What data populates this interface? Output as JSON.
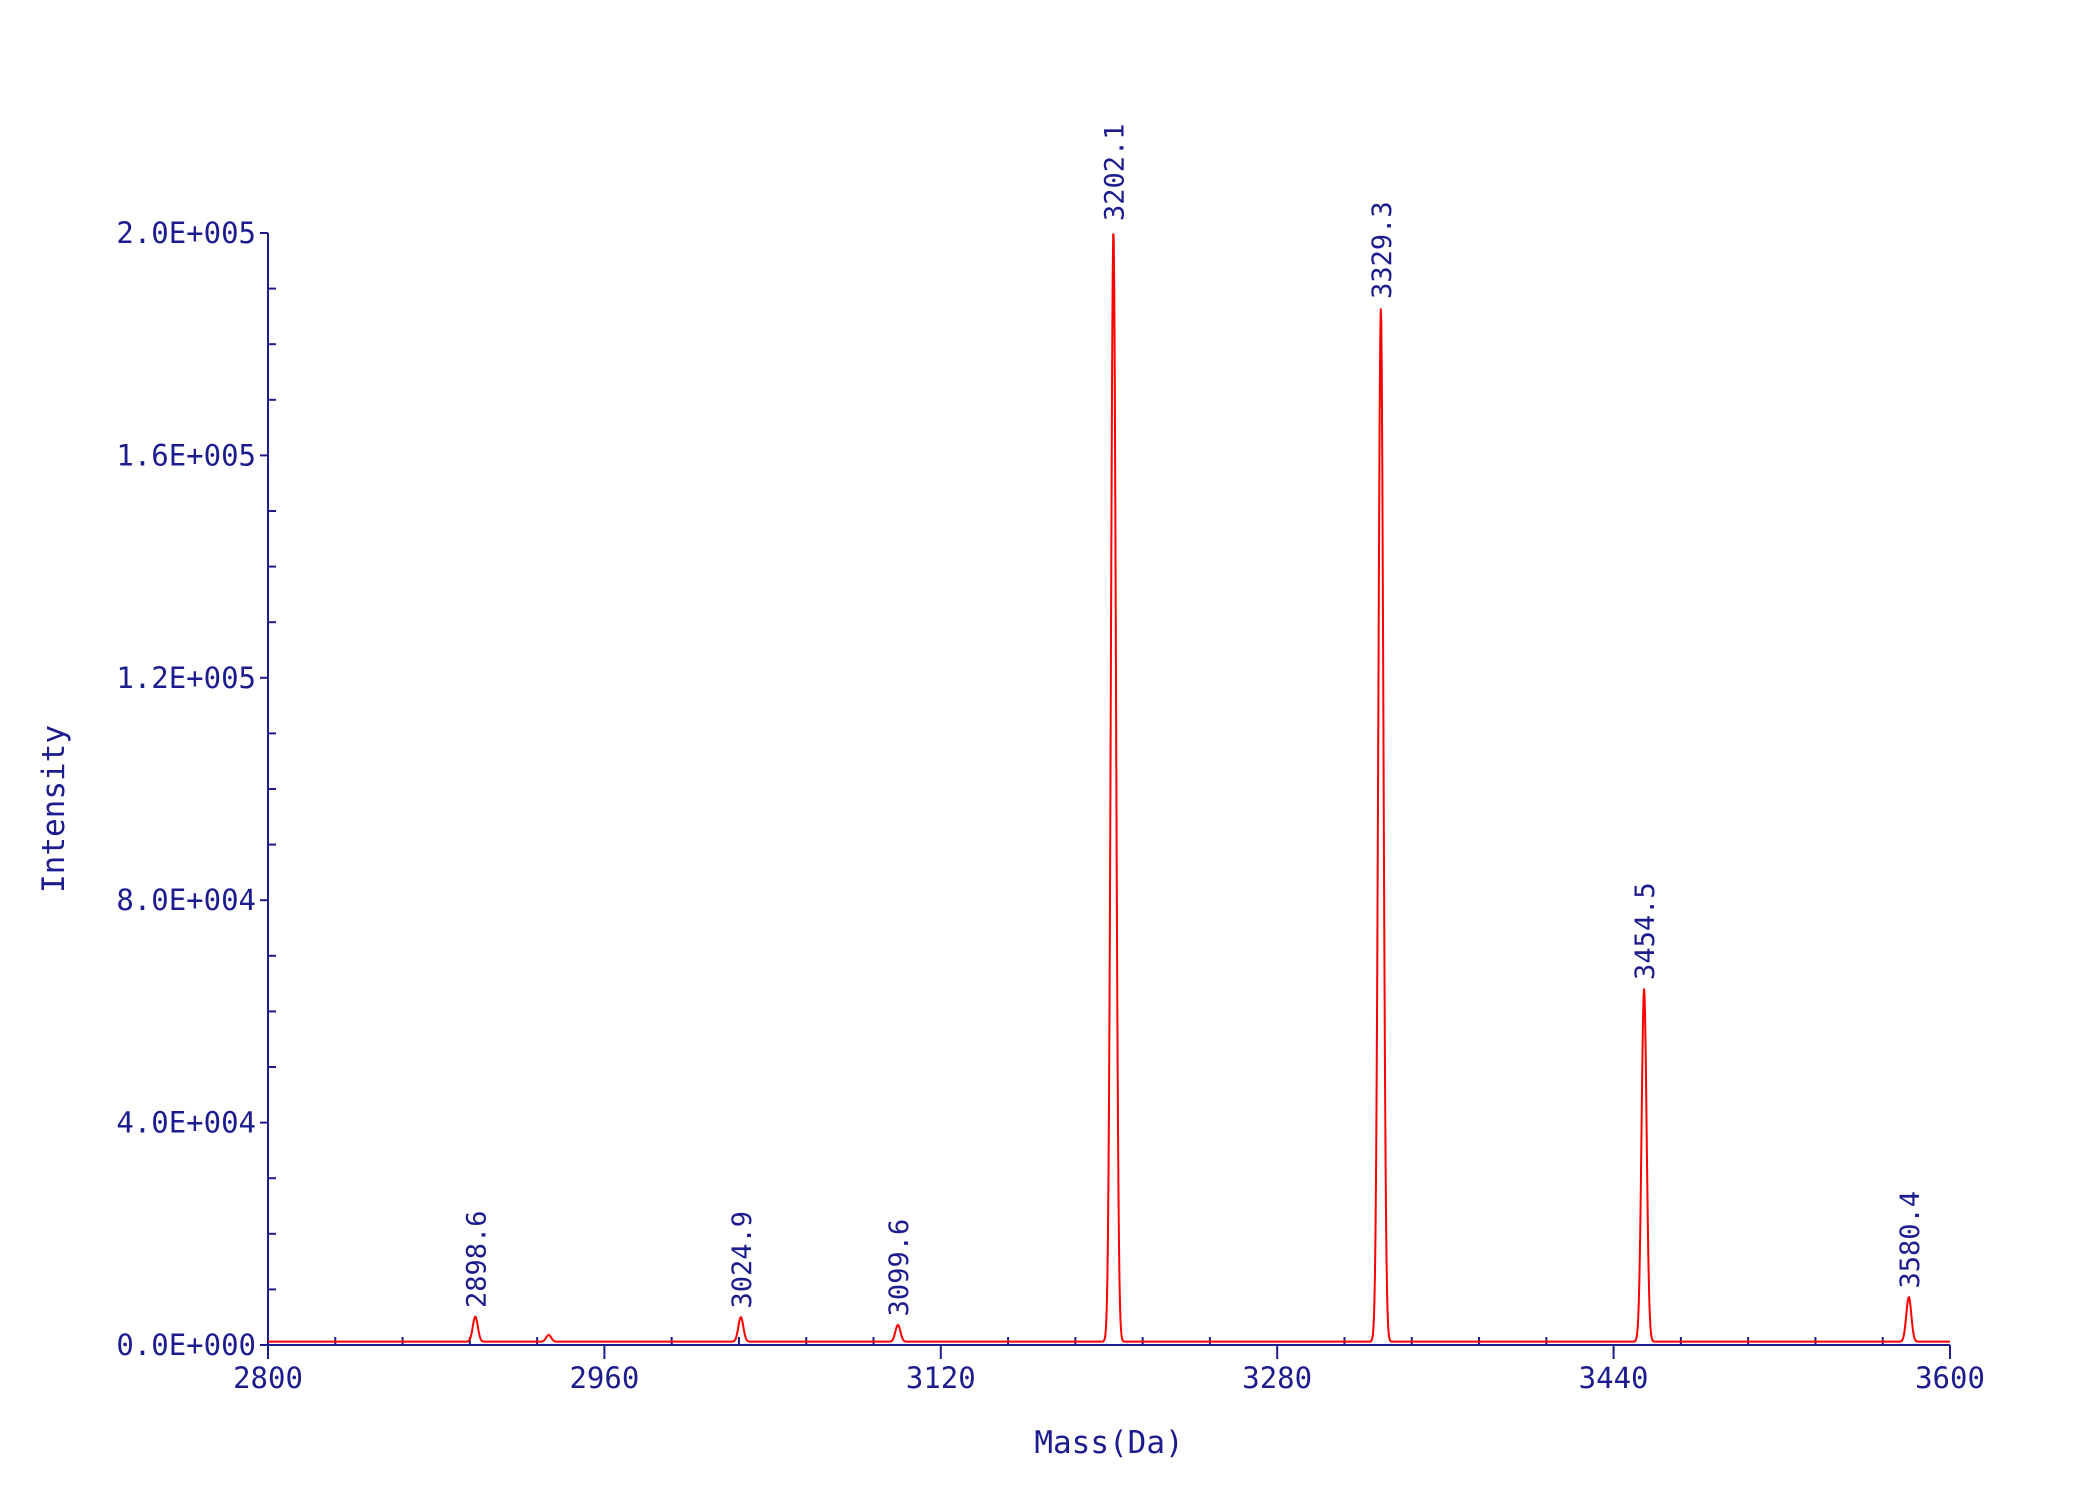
{
  "chart_data": {
    "type": "line",
    "xlabel": "Mass(Da)",
    "ylabel": "Intensity",
    "xlim": [
      2800,
      3600
    ],
    "ylim": [
      0,
      200000
    ],
    "x_ticks": [
      2800,
      2960,
      3120,
      3280,
      3440,
      3600
    ],
    "x_tick_labels": [
      "2800",
      "2960",
      "3120",
      "3280",
      "3440",
      "3600"
    ],
    "y_ticks": [
      0,
      40000,
      80000,
      120000,
      160000,
      200000
    ],
    "y_tick_labels": [
      "0.0E+000",
      "4.0E+004",
      "8.0E+004",
      "1.2E+005",
      "1.6E+005",
      "2.0E+005"
    ],
    "grid": false,
    "colors": {
      "axis": "#1c1c8e",
      "trace": "#ff0000",
      "text": "#1c1c8e"
    },
    "series": [
      {
        "peaks": [
          {
            "x": 2898.6,
            "y": 4500,
            "label": "2898.6"
          },
          {
            "x": 2933.5,
            "y": 1200,
            "label": ""
          },
          {
            "x": 3024.9,
            "y": 4400,
            "label": "3024.9"
          },
          {
            "x": 3099.6,
            "y": 3000,
            "label": "3099.6"
          },
          {
            "x": 3202.1,
            "y": 200000,
            "label": "3202.1"
          },
          {
            "x": 3329.3,
            "y": 186000,
            "label": "3329.3"
          },
          {
            "x": 3454.5,
            "y": 63500,
            "label": "3454.5"
          },
          {
            "x": 3580.4,
            "y": 8000,
            "label": "3580.4"
          }
        ]
      }
    ]
  }
}
